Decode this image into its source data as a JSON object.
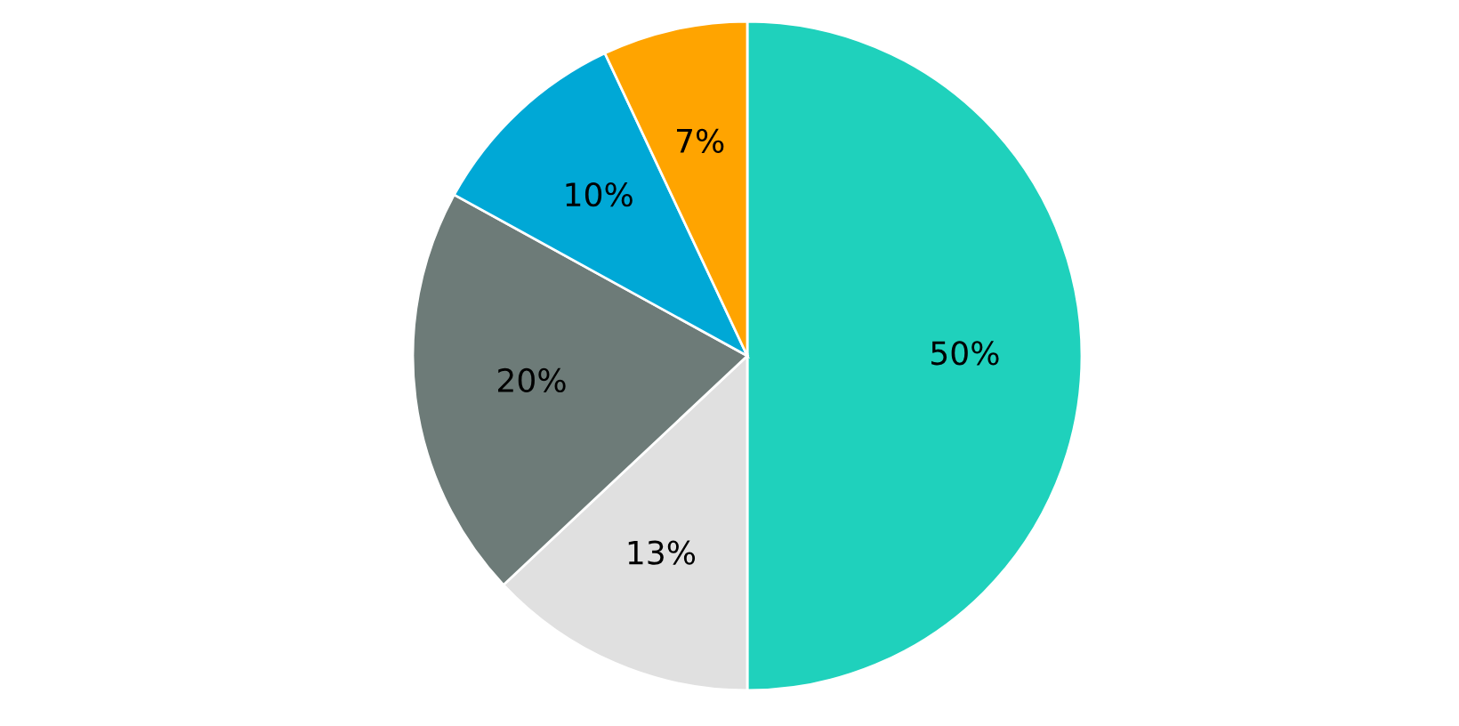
{
  "chart_data": {
    "type": "pie",
    "categories": [
      null,
      null,
      null,
      null,
      null
    ],
    "values": [
      50,
      13,
      20,
      10,
      7
    ],
    "colors": [
      "#1fd1bc",
      "#e0e0e0",
      "#6d7b78",
      "#00a8d6",
      "#ffa400"
    ],
    "value_labels": [
      "50%",
      "13%",
      "20%",
      "10%",
      "7%"
    ]
  }
}
